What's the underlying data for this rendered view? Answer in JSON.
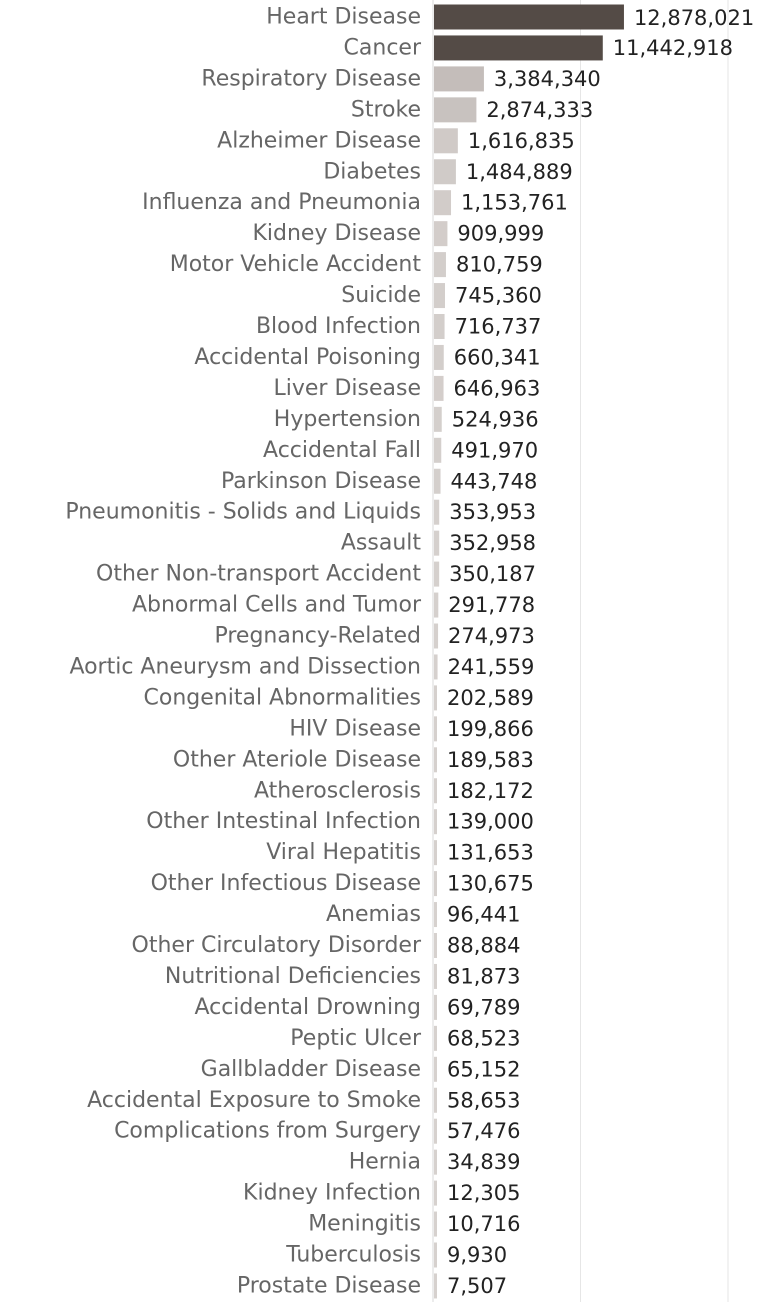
{
  "chart_data": {
    "type": "bar",
    "orientation": "horizontal",
    "title": "",
    "xlabel": "",
    "ylabel": "",
    "grid": true,
    "legend": "none",
    "xlim": [
      0,
      20000000
    ],
    "gridlines_at": [
      10000000,
      20000000
    ],
    "color_scale": {
      "high": "#544b46",
      "low": "#d6d1ce",
      "mid": "#b5adaa"
    },
    "categories": [
      "Heart Disease",
      "Cancer",
      "Respiratory Disease",
      "Stroke",
      "Alzheimer Disease",
      "Diabetes",
      "Influenza and Pneumonia",
      "Kidney Disease",
      "Motor Vehicle Accident",
      "Suicide",
      "Blood Infection",
      "Accidental Poisoning",
      "Liver Disease",
      "Hypertension",
      "Accidental Fall",
      "Parkinson Disease",
      "Pneumonitis - Solids and Liquids",
      "Assault",
      "Other Non-transport Accident",
      "Abnormal Cells and Tumor",
      "Pregnancy-Related",
      "Aortic Aneurysm and Dissection",
      "Congenital Abnormalities",
      "HIV Disease",
      "Other Ateriole Disease",
      "Atherosclerosis",
      "Other Intestinal Infection",
      "Viral Hepatitis",
      "Other Infectious Disease",
      "Anemias",
      "Other Circulatory Disorder",
      "Nutritional Deficiencies",
      "Accidental Drowning",
      "Peptic Ulcer",
      "Gallbladder Disease",
      "Accidental Exposure to Smoke",
      "Complications from Surgery",
      "Hernia",
      "Kidney Infection",
      "Meningitis",
      "Tuberculosis",
      "Prostate Disease"
    ],
    "values": [
      12878021,
      11442918,
      3384340,
      2874333,
      1616835,
      1484889,
      1153761,
      909999,
      810759,
      745360,
      716737,
      660341,
      646963,
      524936,
      491970,
      443748,
      353953,
      352958,
      350187,
      291778,
      274973,
      241559,
      202589,
      199866,
      189583,
      182172,
      139000,
      131653,
      130675,
      96441,
      88884,
      81873,
      69789,
      68523,
      65152,
      58653,
      57476,
      34839,
      12305,
      10716,
      9930,
      7507
    ],
    "value_labels": [
      "12,878,021",
      "11,442,918",
      "3,384,340",
      "2,874,333",
      "1,616,835",
      "1,484,889",
      "1,153,761",
      "909,999",
      "810,759",
      "745,360",
      "716,737",
      "660,341",
      "646,963",
      "524,936",
      "491,970",
      "443,748",
      "353,953",
      "352,958",
      "350,187",
      "291,778",
      "274,973",
      "241,559",
      "202,589",
      "199,866",
      "189,583",
      "182,172",
      "139,000",
      "131,653",
      "130,675",
      "96,441",
      "88,884",
      "81,873",
      "69,789",
      "68,523",
      "65,152",
      "58,653",
      "57,476",
      "34,839",
      "12,305",
      "10,716",
      "9,930",
      "7,507"
    ]
  }
}
